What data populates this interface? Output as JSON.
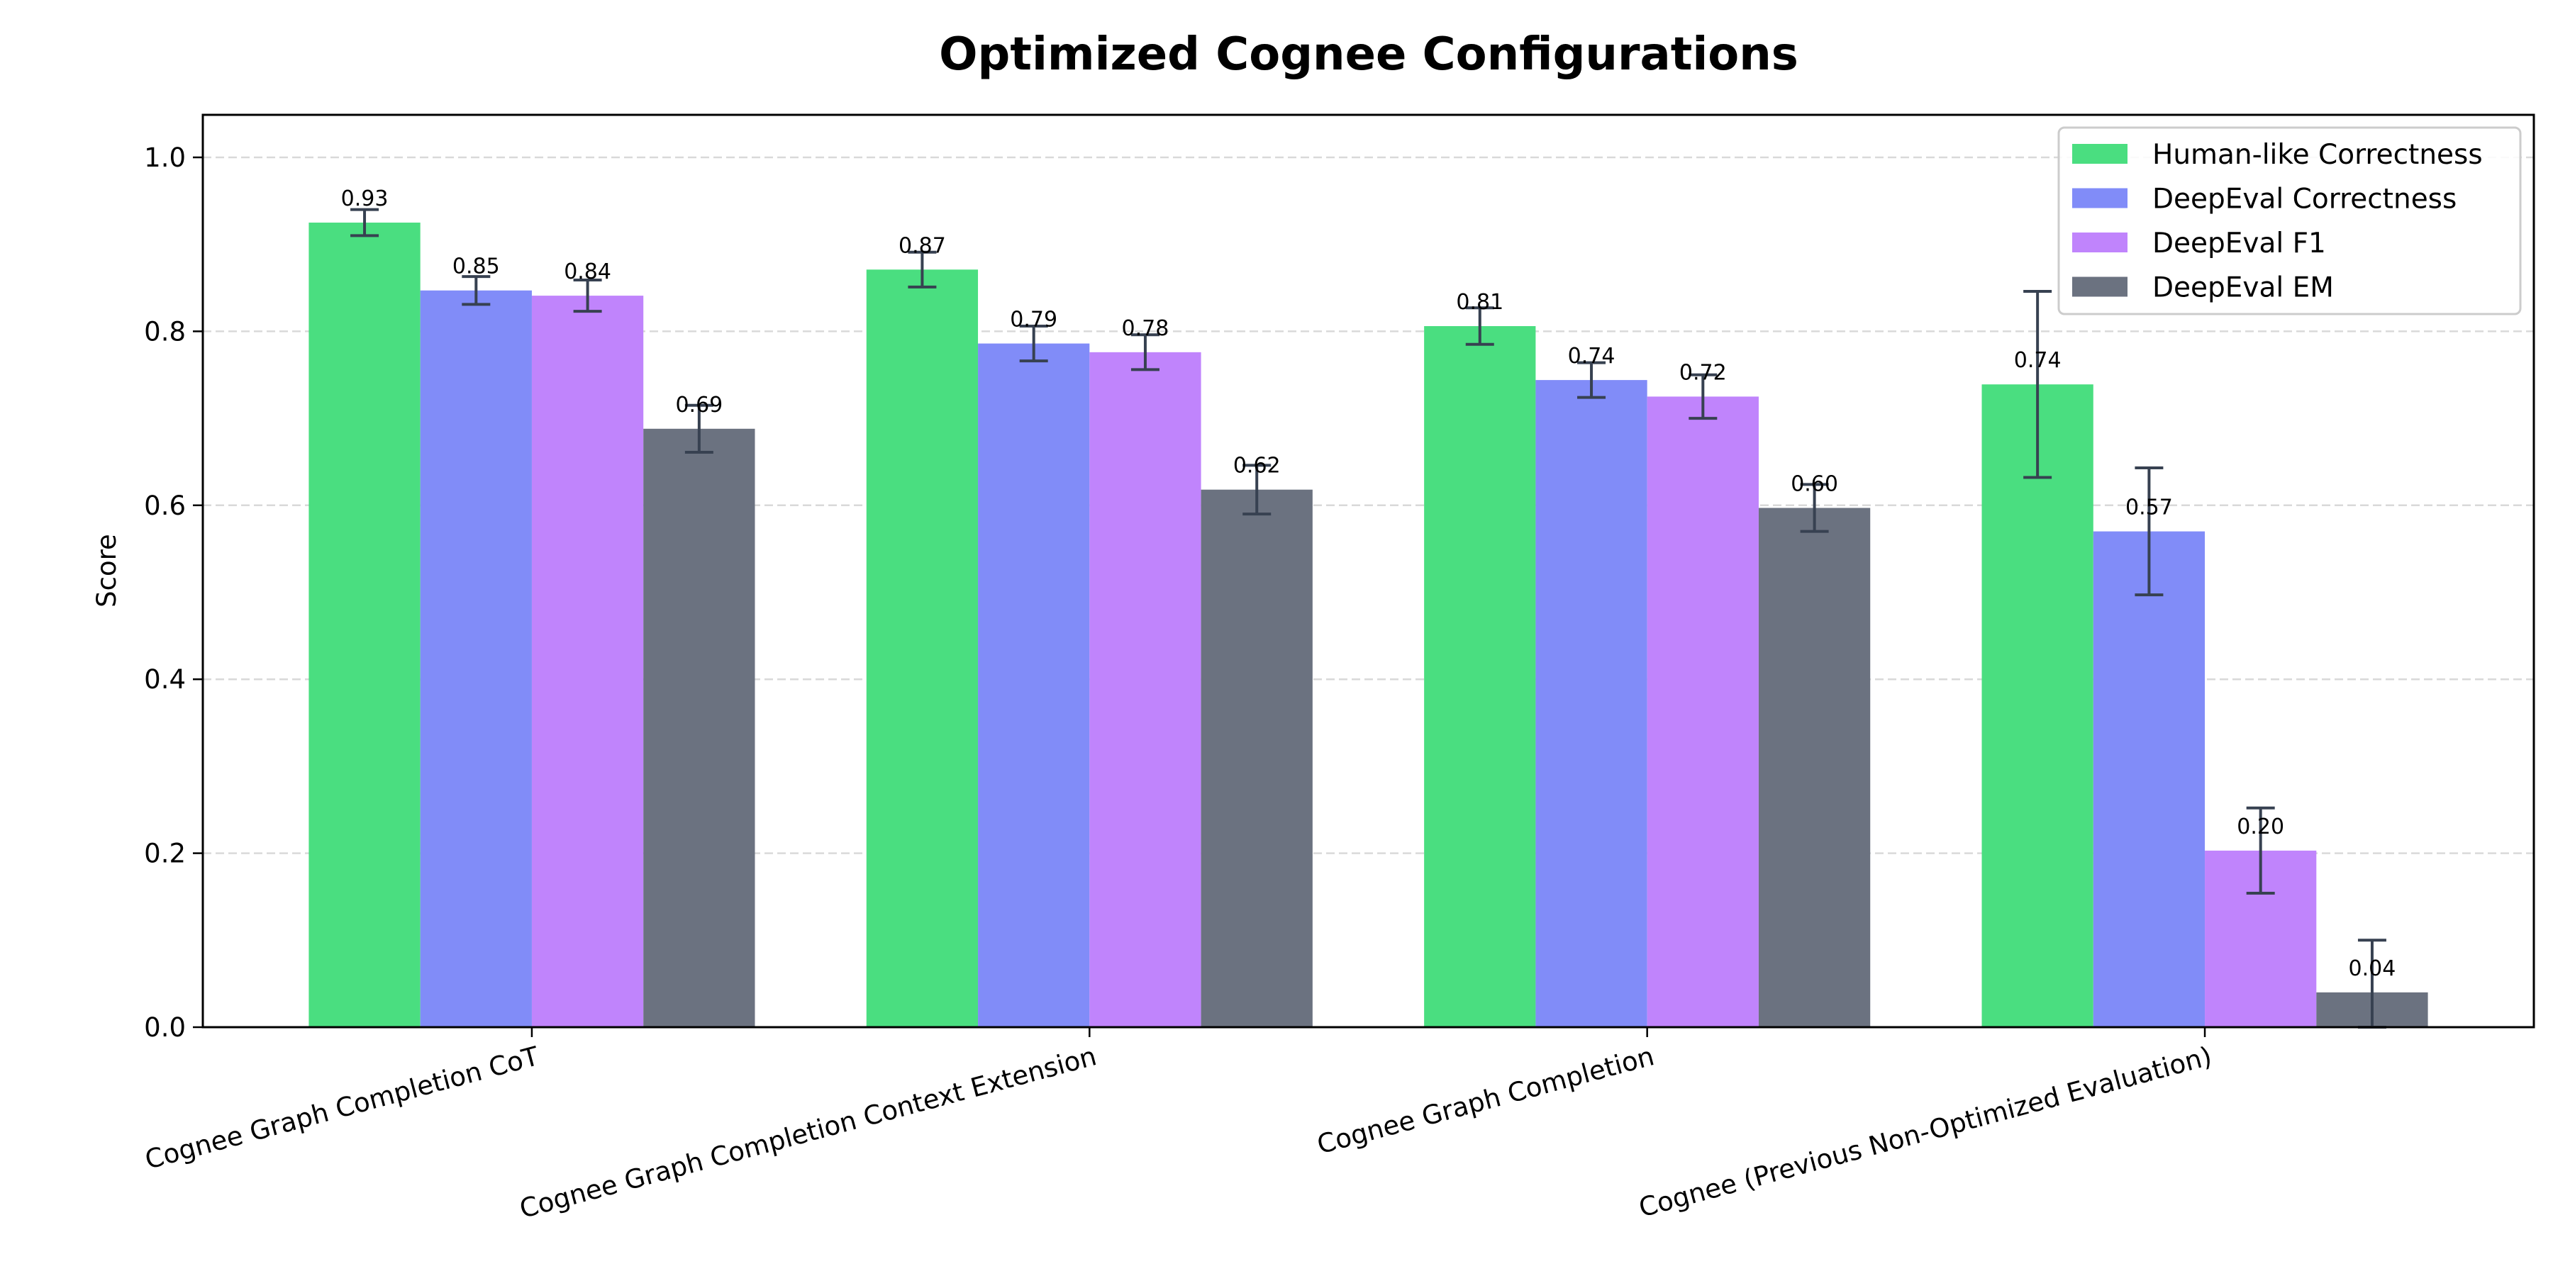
{
  "chart_data": {
    "type": "bar",
    "title": "Optimized Cognee Configurations",
    "xlabel": "",
    "ylabel": "Score",
    "ylim": [
      0,
      1.05
    ],
    "yticks": [
      "0.0",
      "0.2",
      "0.4",
      "0.6",
      "0.8",
      "1.0"
    ],
    "grid": "y-dashed",
    "legend_position": "top-right",
    "categories": [
      "Cognee Graph Completion CoT",
      "Cognee Graph Completion Context Extension",
      "Cognee Graph Completion",
      "Cognee (Previous Non-Optimized Evaluation)"
    ],
    "series": [
      {
        "name": "Human-like Correctness",
        "color": "#4ade80",
        "values": [
          0.925,
          0.871,
          0.806,
          0.739
        ],
        "errors": [
          0.015,
          0.02,
          0.021,
          0.107
        ],
        "labels": [
          "0.93",
          "0.87",
          "0.81",
          "0.74"
        ]
      },
      {
        "name": "DeepEval Correctness",
        "color": "#818cf8",
        "values": [
          0.847,
          0.786,
          0.744,
          0.57
        ],
        "errors": [
          0.016,
          0.02,
          0.02,
          0.073
        ],
        "labels": [
          "0.85",
          "0.79",
          "0.74",
          "0.57"
        ]
      },
      {
        "name": "DeepEval F1",
        "color": "#c084fc",
        "values": [
          0.841,
          0.776,
          0.725,
          0.203
        ],
        "errors": [
          0.018,
          0.02,
          0.025,
          0.049
        ],
        "labels": [
          "0.84",
          "0.78",
          "0.72",
          "0.20"
        ]
      },
      {
        "name": "DeepEval EM",
        "color": "#6b7280",
        "values": [
          0.688,
          0.618,
          0.597,
          0.04
        ],
        "errors": [
          0.027,
          0.028,
          0.027,
          0.06
        ],
        "labels": [
          "0.69",
          "0.62",
          "0.60",
          "0.04"
        ]
      }
    ],
    "error_bar_color": "#374151"
  }
}
